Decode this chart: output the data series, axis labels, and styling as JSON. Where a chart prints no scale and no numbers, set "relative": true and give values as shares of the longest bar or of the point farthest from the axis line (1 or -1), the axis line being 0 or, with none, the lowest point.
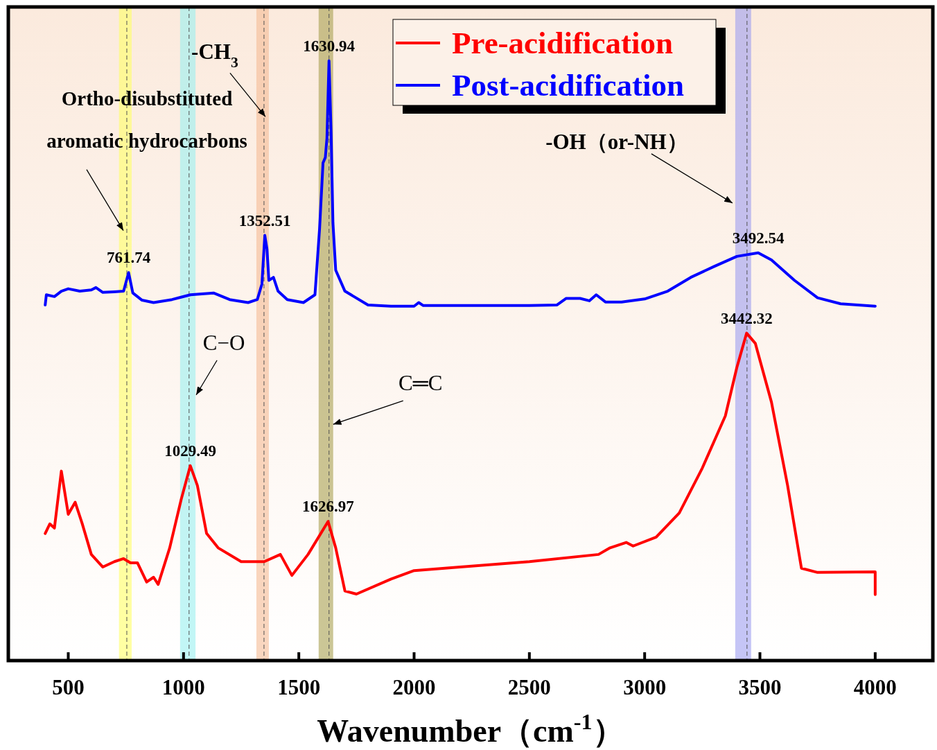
{
  "chart_data": {
    "type": "line",
    "relative": true,
    "xlabel": "Wavenumber（cm$^{-1}$）",
    "xlim": [
      240,
      4250
    ],
    "xticks": [
      500,
      1000,
      1500,
      2000,
      2500,
      3000,
      3500,
      4000
    ],
    "grid": false,
    "legend": "top",
    "line_style": "solid",
    "series": [
      {
        "name": "Pre-acidification",
        "color": "#ff0000",
        "x": [
          400,
          420,
          440,
          470,
          500,
          530,
          560,
          600,
          650,
          700,
          740,
          770,
          800,
          840,
          870,
          890,
          940,
          990,
          1029.49,
          1060,
          1100,
          1150,
          1250,
          1350,
          1420,
          1470,
          1540,
          1626.97,
          1660,
          1700,
          1750,
          1900,
          2000,
          2200,
          2500,
          2800,
          2850,
          2920,
          2950,
          3050,
          3150,
          3250,
          3350,
          3400,
          3442.32,
          3480,
          3550,
          3620,
          3680,
          3750,
          4000,
          4000
        ],
        "values": [
          0.212,
          0.228,
          0.221,
          0.316,
          0.244,
          0.264,
          0.229,
          0.177,
          0.156,
          0.165,
          0.17,
          0.163,
          0.163,
          0.131,
          0.139,
          0.127,
          0.188,
          0.269,
          0.325,
          0.292,
          0.212,
          0.188,
          0.165,
          0.165,
          0.177,
          0.142,
          0.177,
          0.232,
          0.188,
          0.116,
          0.111,
          0.136,
          0.15,
          0.156,
          0.165,
          0.177,
          0.188,
          0.197,
          0.191,
          0.206,
          0.246,
          0.321,
          0.408,
          0.489,
          0.546,
          0.529,
          0.431,
          0.292,
          0.154,
          0.147,
          0.148,
          0.11
        ]
      },
      {
        "name": "Post-acidification",
        "color": "#0000ff",
        "x": [
          400,
          405,
          440,
          470,
          500,
          550,
          600,
          620,
          650,
          700,
          740,
          761.74,
          780,
          820,
          870,
          950,
          1030,
          1100,
          1130,
          1200,
          1280,
          1320,
          1340,
          1352.51,
          1362,
          1370,
          1390,
          1410,
          1450,
          1520,
          1570,
          1590,
          1605,
          1615,
          1622,
          1630.94,
          1640,
          1648,
          1660,
          1700,
          1800,
          1900,
          2000,
          2020,
          2040,
          2300,
          2500,
          2620,
          2660,
          2720,
          2760,
          2790,
          2830,
          2900,
          3000,
          3100,
          3200,
          3300,
          3400,
          3492.54,
          3550,
          3650,
          3750,
          3850,
          4000
        ],
        "values": [
          0.593,
          0.61,
          0.607,
          0.616,
          0.62,
          0.616,
          0.618,
          0.622,
          0.614,
          0.615,
          0.616,
          0.647,
          0.613,
          0.601,
          0.597,
          0.602,
          0.61,
          0.612,
          0.613,
          0.602,
          0.597,
          0.602,
          0.628,
          0.709,
          0.686,
          0.634,
          0.639,
          0.616,
          0.602,
          0.597,
          0.61,
          0.72,
          0.83,
          0.839,
          0.871,
          1,
          0.88,
          0.73,
          0.651,
          0.616,
          0.593,
          0.591,
          0.591,
          0.597,
          0.592,
          0.592,
          0.592,
          0.593,
          0.604,
          0.604,
          0.6,
          0.61,
          0.598,
          0.598,
          0.603,
          0.616,
          0.639,
          0.657,
          0.674,
          0.68,
          0.668,
          0.634,
          0.605,
          0.595,
          0.591
        ]
      }
    ],
    "bands": [
      {
        "axis": "x",
        "from": 720,
        "to": 775,
        "color": "#ffff66"
      },
      {
        "axis": "x",
        "from": 985,
        "to": 1052,
        "color": "#99f0f0"
      },
      {
        "axis": "x",
        "from": 1316,
        "to": 1370,
        "color": "#f5bb94"
      },
      {
        "axis": "x",
        "from": 1586,
        "to": 1649,
        "color": "#a8a050"
      },
      {
        "axis": "x",
        "from": 3393,
        "to": 3462,
        "color": "#9f9ff0"
      }
    ],
    "ref_lines": [
      {
        "axis": "x",
        "value": 754,
        "color": "#505050",
        "line_style": "dashed"
      },
      {
        "axis": "x",
        "value": 1024,
        "color": "#505050",
        "line_style": "dashed"
      },
      {
        "axis": "x",
        "value": 1349,
        "color": "#505050",
        "line_style": "dashed"
      },
      {
        "axis": "x",
        "value": 1631,
        "color": "#505050",
        "line_style": "dashed"
      },
      {
        "axis": "x",
        "value": 3444,
        "color": "#505050",
        "line_style": "dashed"
      }
    ],
    "annotations": [
      {
        "text": "Ortho-disubstituted aromatic hydrocarbons",
        "x": 739,
        "y": 0.717
      },
      {
        "text": "-CH$_{3}$",
        "x": 1355,
        "y": 0.907
      },
      {
        "text": "C−O",
        "x": 1055,
        "y": 0.443
      },
      {
        "text": "C═C",
        "x": 1649,
        "y": 0.394
      },
      {
        "text": "-OH（or-NH）",
        "x": 3381,
        "y": 0.763
      },
      {
        "text": "761.74",
        "x": 761.74,
        "y": 0.647
      },
      {
        "text": "1352.51",
        "x": 1352.51,
        "y": 0.709
      },
      {
        "text": "1630.94",
        "x": 1630.94,
        "y": 1
      },
      {
        "text": "3492.54",
        "x": 3492.54,
        "y": 0.68
      },
      {
        "text": "1029.49",
        "x": 1029.49,
        "y": 0.325
      },
      {
        "text": "1626.97",
        "x": 1626.97,
        "y": 0.232
      },
      {
        "text": "3442.32",
        "x": 3442.32,
        "y": 0.546
      }
    ]
  }
}
